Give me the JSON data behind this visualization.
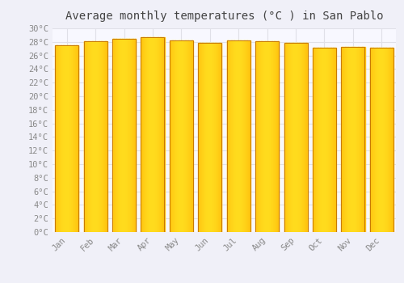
{
  "title": "Average monthly temperatures (°C ) in San Pablo",
  "months": [
    "Jan",
    "Feb",
    "Mar",
    "Apr",
    "May",
    "Jun",
    "Jul",
    "Aug",
    "Sep",
    "Oct",
    "Nov",
    "Dec"
  ],
  "temperatures": [
    27.5,
    28.1,
    28.5,
    28.7,
    28.2,
    27.9,
    28.2,
    28.1,
    27.8,
    27.2,
    27.3,
    27.1
  ],
  "ylim": [
    0,
    30
  ],
  "ytick_step": 2,
  "bar_color_left": "#F5A800",
  "bar_color_center": "#FFD040",
  "bar_color_right": "#E08800",
  "bar_edge_color": "#C87800",
  "background_color": "#f0f0f8",
  "plot_bg_color": "#f8f8ff",
  "grid_color": "#e0e0e8",
  "title_fontsize": 10,
  "tick_fontsize": 7.5
}
